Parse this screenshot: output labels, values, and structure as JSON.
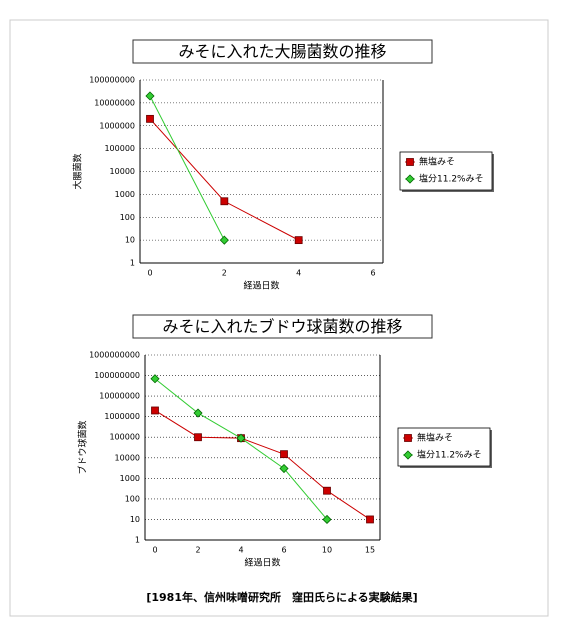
{
  "chart_data": [
    {
      "type": "line",
      "title": "みそに入れた大腸菌数の推移",
      "y_label": "大腸菌数",
      "x_label": "経過日数",
      "categories": [
        "0",
        "2",
        "4",
        "6"
      ],
      "log_scale": true,
      "grid": true,
      "ylim": [
        1,
        100000000
      ],
      "yticks": [
        1,
        10,
        100,
        1000,
        10000,
        100000,
        1000000,
        10000000,
        100000000
      ],
      "series": [
        {
          "name": "無塩みそ",
          "color": "#cc0000",
          "marker": "square",
          "values": [
            2000000,
            500,
            10,
            null
          ]
        },
        {
          "name": "塩分11.2%みそ",
          "color": "#33cc33",
          "marker": "diamond",
          "values": [
            20000000,
            10,
            null,
            null
          ]
        }
      ]
    },
    {
      "type": "line",
      "title": "みそに入れたブドウ球菌数の推移",
      "y_label": "ブドウ球菌数",
      "x_label": "経過日数",
      "categories": [
        "0",
        "2",
        "4",
        "6",
        "10",
        "15"
      ],
      "log_scale": true,
      "grid": true,
      "ylim": [
        1,
        1000000000
      ],
      "yticks": [
        1,
        10,
        100,
        1000,
        10000,
        100000,
        1000000,
        10000000,
        100000000,
        1000000000
      ],
      "series": [
        {
          "name": "無塩みそ",
          "color": "#cc0000",
          "marker": "square",
          "values": [
            2000000,
            100000,
            90000,
            15000,
            250,
            10
          ]
        },
        {
          "name": "塩分11.2%みそ",
          "color": "#33cc33",
          "marker": "diamond",
          "values": [
            70000000,
            1500000,
            90000,
            3000,
            10,
            null
          ]
        }
      ]
    }
  ],
  "caption": "[1981年、信州味噌研究所　窪田氏らによる実験結果]"
}
